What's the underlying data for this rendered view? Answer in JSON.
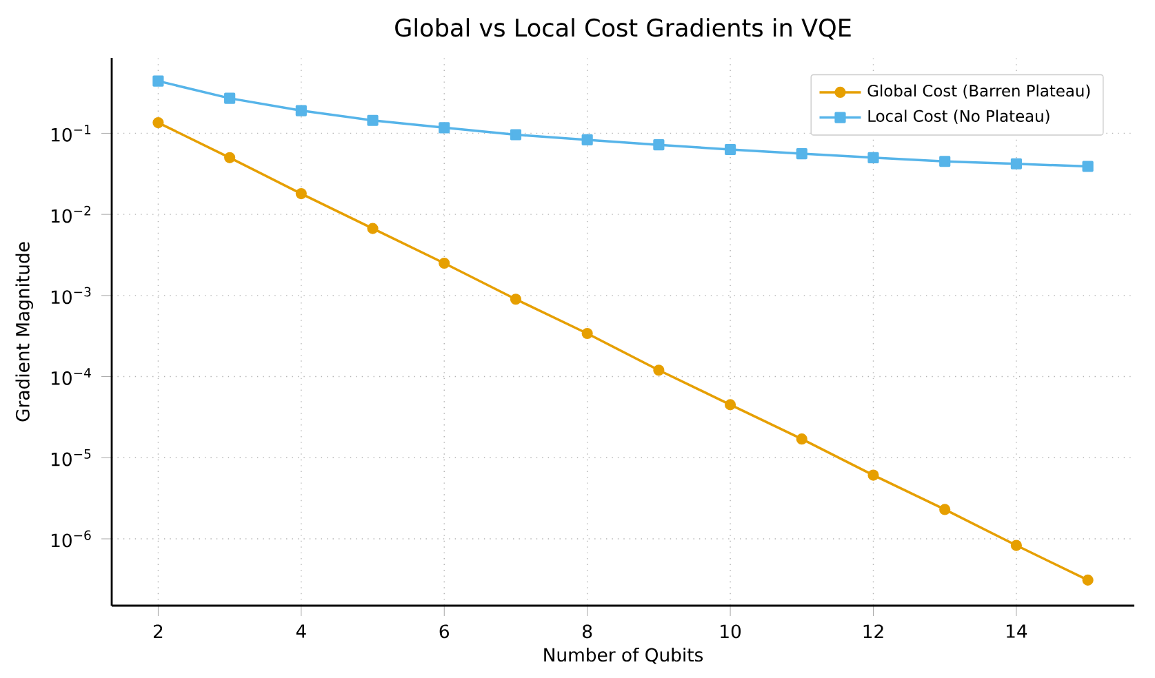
{
  "chart_data": {
    "type": "line",
    "title": "Global vs Local Cost Gradients in VQE",
    "xlabel": "Number of Qubits",
    "ylabel": "Gradient Magnitude",
    "x": [
      2,
      3,
      4,
      5,
      6,
      7,
      8,
      9,
      10,
      11,
      12,
      13,
      14,
      15
    ],
    "series": [
      {
        "name": "Global Cost (Barren Plateau)",
        "color": "#e69f00",
        "marker": "circle",
        "values": [
          0.135,
          0.05,
          0.018,
          0.0067,
          0.0025,
          0.0009,
          0.00034,
          0.00012,
          4.5e-05,
          1.7e-05,
          6.1e-06,
          2.3e-06,
          8.3e-07,
          3.1e-07
        ]
      },
      {
        "name": "Local Cost (No Plateau)",
        "color": "#56b4e9",
        "marker": "square",
        "values": [
          0.44,
          0.27,
          0.19,
          0.144,
          0.117,
          0.096,
          0.083,
          0.072,
          0.063,
          0.056,
          0.05,
          0.045,
          0.042,
          0.039
        ]
      }
    ],
    "xlim": [
      1.35,
      15.65
    ],
    "ylim": [
      1.5e-07,
      0.85
    ],
    "xticks": [
      2,
      4,
      6,
      8,
      10,
      12,
      14
    ],
    "yticks": [
      {
        "value": 0.1,
        "label": "10$^{−1}$"
      },
      {
        "value": 0.01,
        "label": "10$^{−2}$"
      },
      {
        "value": 0.001,
        "label": "10$^{−3}$"
      },
      {
        "value": 0.0001,
        "label": "10$^{−4}$"
      },
      {
        "value": 1e-05,
        "label": "10$^{−5}$"
      },
      {
        "value": 1e-06,
        "label": "10$^{−6}$"
      }
    ],
    "log": "y",
    "grid": true,
    "legend": "top right",
    "line_style": "solid"
  }
}
